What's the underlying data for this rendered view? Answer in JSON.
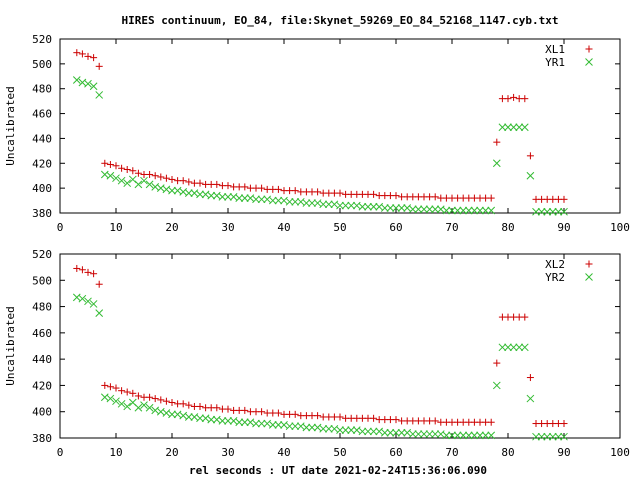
{
  "title": "HIRES continuum, EO_84, file:Skynet_59269_EO_84_52168_1147.cyb.txt",
  "xlabel": "rel seconds : UT date 2021-02-24T15:36:06.090",
  "colors": {
    "red": "#cc0000",
    "green": "#33bb33",
    "axis": "#000000"
  },
  "chart_data": [
    {
      "type": "scatter",
      "ylabel": "Uncalibrated",
      "xlim": [
        0,
        100
      ],
      "ylim": [
        380,
        520
      ],
      "xticks": [
        0,
        10,
        20,
        30,
        40,
        50,
        60,
        70,
        80,
        90,
        100
      ],
      "yticks": [
        380,
        400,
        420,
        440,
        460,
        480,
        500,
        520
      ],
      "legend_position": "top-right",
      "series": [
        {
          "name": "XL1",
          "marker": "plus",
          "color": "#cc0000",
          "x": [
            3,
            4,
            5,
            6,
            7,
            8,
            9,
            10,
            11,
            12,
            13,
            14,
            15,
            16,
            17,
            18,
            19,
            20,
            21,
            22,
            23,
            24,
            25,
            26,
            27,
            28,
            29,
            30,
            31,
            32,
            33,
            34,
            35,
            36,
            37,
            38,
            39,
            40,
            41,
            42,
            43,
            44,
            45,
            46,
            47,
            48,
            49,
            50,
            51,
            52,
            53,
            54,
            55,
            56,
            57,
            58,
            59,
            60,
            61,
            62,
            63,
            64,
            65,
            66,
            67,
            68,
            69,
            70,
            71,
            72,
            73,
            74,
            75,
            76,
            77,
            78,
            79,
            80,
            81,
            82,
            83,
            84,
            85,
            86,
            87,
            88,
            89,
            90
          ],
          "y": [
            509,
            508,
            506,
            505,
            498,
            420,
            419,
            418,
            416,
            415,
            414,
            412,
            411,
            411,
            410,
            409,
            408,
            407,
            406,
            406,
            405,
            404,
            404,
            403,
            403,
            403,
            402,
            402,
            401,
            401,
            401,
            400,
            400,
            400,
            399,
            399,
            399,
            398,
            398,
            398,
            397,
            397,
            397,
            397,
            396,
            396,
            396,
            396,
            395,
            395,
            395,
            395,
            395,
            395,
            394,
            394,
            394,
            394,
            393,
            393,
            393,
            393,
            393,
            393,
            393,
            392,
            392,
            392,
            392,
            392,
            392,
            392,
            392,
            392,
            392,
            437,
            472,
            472,
            473,
            472,
            472,
            426,
            391,
            391,
            391,
            391,
            391,
            391
          ]
        },
        {
          "name": "YR1",
          "marker": "cross",
          "color": "#33bb33",
          "x": [
            3,
            4,
            5,
            6,
            7,
            8,
            9,
            10,
            11,
            12,
            13,
            14,
            15,
            16,
            17,
            18,
            19,
            20,
            21,
            22,
            23,
            24,
            25,
            26,
            27,
            28,
            29,
            30,
            31,
            32,
            33,
            34,
            35,
            36,
            37,
            38,
            39,
            40,
            41,
            42,
            43,
            44,
            45,
            46,
            47,
            48,
            49,
            50,
            51,
            52,
            53,
            54,
            55,
            56,
            57,
            58,
            59,
            60,
            61,
            62,
            63,
            64,
            65,
            66,
            67,
            68,
            69,
            70,
            71,
            72,
            73,
            74,
            75,
            76,
            77,
            78,
            79,
            80,
            81,
            82,
            83,
            84,
            85,
            86,
            87,
            88,
            89,
            90
          ],
          "y": [
            487,
            485,
            484,
            482,
            475,
            411,
            410,
            408,
            406,
            404,
            407,
            403,
            406,
            403,
            401,
            400,
            399,
            398,
            398,
            397,
            396,
            396,
            395,
            395,
            394,
            394,
            393,
            393,
            393,
            392,
            392,
            392,
            391,
            391,
            391,
            390,
            390,
            390,
            389,
            389,
            389,
            388,
            388,
            388,
            387,
            387,
            387,
            386,
            386,
            386,
            386,
            385,
            385,
            385,
            385,
            384,
            384,
            384,
            384,
            384,
            383,
            383,
            383,
            383,
            383,
            383,
            382,
            382,
            382,
            382,
            382,
            382,
            382,
            382,
            382,
            420,
            449,
            449,
            449,
            449,
            449,
            410,
            381,
            381,
            381,
            381,
            381,
            381
          ]
        }
      ]
    },
    {
      "type": "scatter",
      "ylabel": "Uncalibrated",
      "xlim": [
        0,
        100
      ],
      "ylim": [
        380,
        520
      ],
      "xticks": [
        0,
        10,
        20,
        30,
        40,
        50,
        60,
        70,
        80,
        90,
        100
      ],
      "yticks": [
        380,
        400,
        420,
        440,
        460,
        480,
        500,
        520
      ],
      "legend_position": "top-right",
      "series": [
        {
          "name": "XL2",
          "marker": "plus",
          "color": "#cc0000",
          "x": [
            3,
            4,
            5,
            6,
            7,
            8,
            9,
            10,
            11,
            12,
            13,
            14,
            15,
            16,
            17,
            18,
            19,
            20,
            21,
            22,
            23,
            24,
            25,
            26,
            27,
            28,
            29,
            30,
            31,
            32,
            33,
            34,
            35,
            36,
            37,
            38,
            39,
            40,
            41,
            42,
            43,
            44,
            45,
            46,
            47,
            48,
            49,
            50,
            51,
            52,
            53,
            54,
            55,
            56,
            57,
            58,
            59,
            60,
            61,
            62,
            63,
            64,
            65,
            66,
            67,
            68,
            69,
            70,
            71,
            72,
            73,
            74,
            75,
            76,
            77,
            78,
            79,
            80,
            81,
            82,
            83,
            84,
            85,
            86,
            87,
            88,
            89,
            90
          ],
          "y": [
            509,
            508,
            506,
            505,
            497,
            420,
            419,
            418,
            416,
            415,
            414,
            412,
            411,
            411,
            410,
            409,
            408,
            407,
            406,
            406,
            405,
            404,
            404,
            403,
            403,
            403,
            402,
            402,
            401,
            401,
            401,
            400,
            400,
            400,
            399,
            399,
            399,
            398,
            398,
            398,
            397,
            397,
            397,
            397,
            396,
            396,
            396,
            396,
            395,
            395,
            395,
            395,
            395,
            395,
            394,
            394,
            394,
            394,
            393,
            393,
            393,
            393,
            393,
            393,
            393,
            392,
            392,
            392,
            392,
            392,
            392,
            392,
            392,
            392,
            392,
            437,
            472,
            472,
            472,
            472,
            472,
            426,
            391,
            391,
            391,
            391,
            391,
            391
          ]
        },
        {
          "name": "YR2",
          "marker": "cross",
          "color": "#33bb33",
          "x": [
            3,
            4,
            5,
            6,
            7,
            8,
            9,
            10,
            11,
            12,
            13,
            14,
            15,
            16,
            17,
            18,
            19,
            20,
            21,
            22,
            23,
            24,
            25,
            26,
            27,
            28,
            29,
            30,
            31,
            32,
            33,
            34,
            35,
            36,
            37,
            38,
            39,
            40,
            41,
            42,
            43,
            44,
            45,
            46,
            47,
            48,
            49,
            50,
            51,
            52,
            53,
            54,
            55,
            56,
            57,
            58,
            59,
            60,
            61,
            62,
            63,
            64,
            65,
            66,
            67,
            68,
            69,
            70,
            71,
            72,
            73,
            74,
            75,
            76,
            77,
            78,
            79,
            80,
            81,
            82,
            83,
            84,
            85,
            86,
            87,
            88,
            89,
            90
          ],
          "y": [
            487,
            486,
            484,
            482,
            475,
            411,
            410,
            408,
            406,
            404,
            407,
            403,
            405,
            403,
            401,
            400,
            399,
            398,
            398,
            397,
            396,
            396,
            395,
            395,
            394,
            394,
            393,
            393,
            393,
            392,
            392,
            392,
            391,
            391,
            391,
            390,
            390,
            390,
            389,
            389,
            389,
            388,
            388,
            388,
            387,
            387,
            387,
            386,
            386,
            386,
            386,
            385,
            385,
            385,
            385,
            384,
            384,
            384,
            384,
            384,
            383,
            383,
            383,
            383,
            383,
            383,
            382,
            382,
            382,
            382,
            382,
            382,
            382,
            382,
            382,
            420,
            449,
            449,
            449,
            449,
            449,
            410,
            381,
            381,
            381,
            381,
            381,
            381
          ]
        }
      ]
    }
  ]
}
